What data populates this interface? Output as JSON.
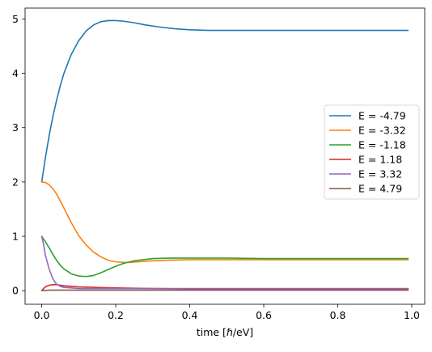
{
  "chart_data": {
    "type": "line",
    "title": "",
    "xlabel": "time [ℏ/eV]",
    "ylabel": "",
    "xlim": [
      -0.045,
      1.035
    ],
    "ylim": [
      -0.25,
      5.2
    ],
    "xticks": [
      0.0,
      0.2,
      0.4,
      0.6,
      0.8,
      1.0
    ],
    "xtick_labels": [
      "0.0",
      "0.2",
      "0.4",
      "0.6",
      "0.8",
      "1.0"
    ],
    "yticks": [
      0,
      1,
      2,
      3,
      4,
      5
    ],
    "ytick_labels": [
      "0",
      "1",
      "2",
      "3",
      "4",
      "5"
    ],
    "grid": false,
    "legend_position": "center-right",
    "series": [
      {
        "name": "E = -4.79",
        "color": "#1f77b4",
        "x": [
          0.0,
          0.01,
          0.02,
          0.03,
          0.04,
          0.05,
          0.06,
          0.08,
          0.1,
          0.12,
          0.14,
          0.16,
          0.18,
          0.2,
          0.22,
          0.25,
          0.28,
          0.32,
          0.36,
          0.4,
          0.45,
          0.5,
          0.6,
          0.7,
          0.8,
          0.9,
          0.99
        ],
        "y": [
          2.0,
          2.45,
          2.85,
          3.2,
          3.5,
          3.77,
          4.0,
          4.35,
          4.6,
          4.78,
          4.89,
          4.95,
          4.97,
          4.97,
          4.96,
          4.93,
          4.89,
          4.85,
          4.82,
          4.8,
          4.79,
          4.79,
          4.79,
          4.79,
          4.79,
          4.79,
          4.79
        ]
      },
      {
        "name": "E = -3.32",
        "color": "#ff7f0e",
        "x": [
          0.0,
          0.01,
          0.02,
          0.03,
          0.04,
          0.05,
          0.06,
          0.08,
          0.1,
          0.12,
          0.14,
          0.16,
          0.18,
          0.2,
          0.22,
          0.24,
          0.26,
          0.28,
          0.3,
          0.34,
          0.4,
          0.5,
          0.6,
          0.8,
          0.99
        ],
        "y": [
          2.0,
          1.99,
          1.95,
          1.88,
          1.78,
          1.65,
          1.52,
          1.25,
          1.01,
          0.84,
          0.71,
          0.62,
          0.56,
          0.53,
          0.52,
          0.52,
          0.53,
          0.54,
          0.55,
          0.56,
          0.57,
          0.57,
          0.57,
          0.57,
          0.57
        ]
      },
      {
        "name": "E = -1.18",
        "color": "#2ca02c",
        "x": [
          0.0,
          0.01,
          0.02,
          0.03,
          0.04,
          0.05,
          0.06,
          0.08,
          0.1,
          0.12,
          0.14,
          0.16,
          0.18,
          0.2,
          0.22,
          0.25,
          0.3,
          0.35,
          0.4,
          0.45,
          0.5,
          0.6,
          0.8,
          0.99
        ],
        "y": [
          1.0,
          0.9,
          0.79,
          0.67,
          0.56,
          0.47,
          0.4,
          0.31,
          0.27,
          0.26,
          0.28,
          0.33,
          0.39,
          0.45,
          0.5,
          0.55,
          0.59,
          0.6,
          0.6,
          0.6,
          0.6,
          0.59,
          0.59,
          0.59
        ]
      },
      {
        "name": "E = 1.18",
        "color": "#d62728",
        "x": [
          0.0,
          0.005,
          0.01,
          0.02,
          0.03,
          0.04,
          0.05,
          0.06,
          0.08,
          0.1,
          0.15,
          0.2,
          0.3,
          0.4,
          0.6,
          0.8,
          0.99
        ],
        "y": [
          0.0,
          0.04,
          0.07,
          0.1,
          0.11,
          0.11,
          0.1,
          0.09,
          0.08,
          0.07,
          0.06,
          0.05,
          0.04,
          0.03,
          0.03,
          0.03,
          0.03
        ]
      },
      {
        "name": "E = 3.32",
        "color": "#9467bd",
        "x": [
          0.0,
          0.005,
          0.01,
          0.02,
          0.03,
          0.04,
          0.05,
          0.06,
          0.08,
          0.1,
          0.15,
          0.2,
          0.4,
          0.6,
          0.8,
          0.99
        ],
        "y": [
          1.0,
          0.85,
          0.65,
          0.4,
          0.22,
          0.12,
          0.08,
          0.06,
          0.05,
          0.04,
          0.04,
          0.04,
          0.04,
          0.04,
          0.04,
          0.04
        ]
      },
      {
        "name": "E = 4.79",
        "color": "#8c564b",
        "x": [
          0.0,
          0.02,
          0.05,
          0.1,
          0.2,
          0.4,
          0.6,
          0.8,
          0.99
        ],
        "y": [
          0.0,
          0.01,
          0.01,
          0.01,
          0.01,
          0.01,
          0.01,
          0.01,
          0.01
        ]
      }
    ]
  }
}
